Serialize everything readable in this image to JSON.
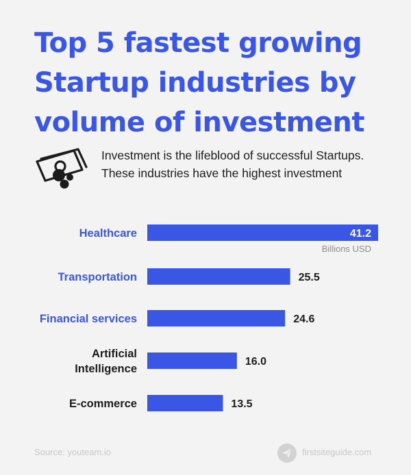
{
  "chart_data": {
    "type": "bar",
    "orientation": "horizontal",
    "title": "Top 5 fastest growing Startup industries by volume of investment",
    "subtitle": "Investment is the lifeblood of successful Startups. These industries have the highest investment",
    "categories": [
      "Healthcare",
      "Transportation",
      "Financial services",
      "Artificial Intelligence",
      "E-commerce"
    ],
    "category_lines": [
      [
        "Healthcare"
      ],
      [
        "Transportation"
      ],
      [
        "Financial services"
      ],
      [
        "Artificial",
        "Intelligence"
      ],
      [
        "E-commerce"
      ]
    ],
    "values": [
      41.2,
      25.5,
      24.6,
      16.0,
      13.5
    ],
    "value_labels": [
      "41.2",
      "25.5",
      "24.6",
      "16.0",
      "13.5"
    ],
    "unit_label": "Billions USD",
    "xlim": [
      0,
      41.2
    ],
    "grid": false,
    "bar_color": "#3a56e4",
    "label_colors": [
      "#3a56e4",
      "#3a56e4",
      "#3a56e4",
      "#1c1c1c",
      "#1c1c1c"
    ]
  },
  "footer": {
    "source": "Source: youteam.io",
    "brand_icon": "paper-plane-icon",
    "brand": "firstsiteguide.com"
  },
  "icons": {
    "subtitle_icon": "money-coins-icon"
  }
}
